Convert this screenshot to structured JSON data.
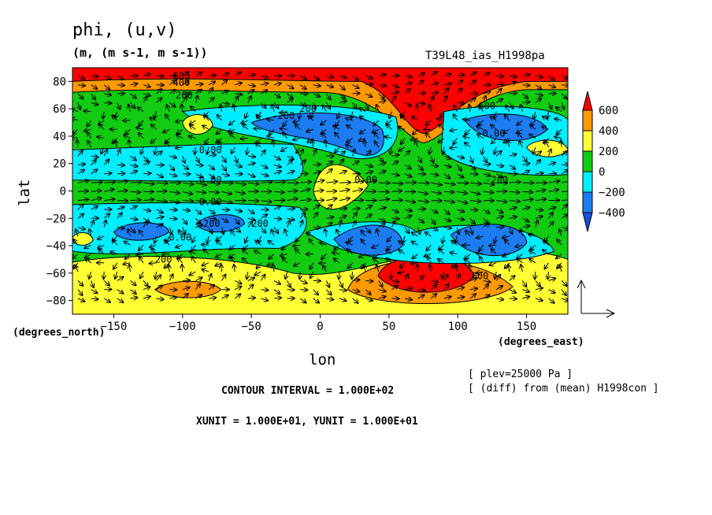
{
  "chart_data": {
    "type": "heatmap",
    "title": "phi, (u,v)",
    "units": "(m, (m s-1, m s-1))",
    "run_label": "T39L48_ias_H1998pa",
    "xlabel": "lon",
    "ylabel": "lat",
    "x_unit_label": "(degrees_east)",
    "y_unit_label": "(degrees_north)",
    "xlim": [
      -180,
      180
    ],
    "ylim": [
      -90,
      90
    ],
    "x_ticks": [
      "-150",
      "-100",
      "-50",
      "0",
      "50",
      "100",
      "150"
    ],
    "y_ticks": [
      "80",
      "60",
      "40",
      "20",
      "0",
      "-20",
      "-40",
      "-60",
      "-80"
    ],
    "legend": {
      "labels": [
        "600",
        "400",
        "200",
        "0",
        "-200",
        "-400"
      ],
      "colors": [
        "#ff0000",
        "#ff9900",
        "#ffff33",
        "#11cc11",
        "#00eeff",
        "#1c7cf0",
        "#1c4fd8"
      ]
    },
    "contour_labels": [
      "600",
      "400",
      "200",
      "200",
      "0.00",
      "0.00",
      "0.00",
      "0.00",
      "200",
      "200",
      "200",
      "-200",
      "-200",
      "0.00",
      "0.00",
      "600",
      "600"
    ],
    "info_lines": [
      "[ plev=25000 Pa ]",
      "[ (diff) from (mean) H1998con ]"
    ],
    "contour_interval": "CONTOUR INTERVAL = 1.000E+02",
    "vector_units": "XUNIT = 1.000E+01, YUNIT = 1.000E+01"
  }
}
